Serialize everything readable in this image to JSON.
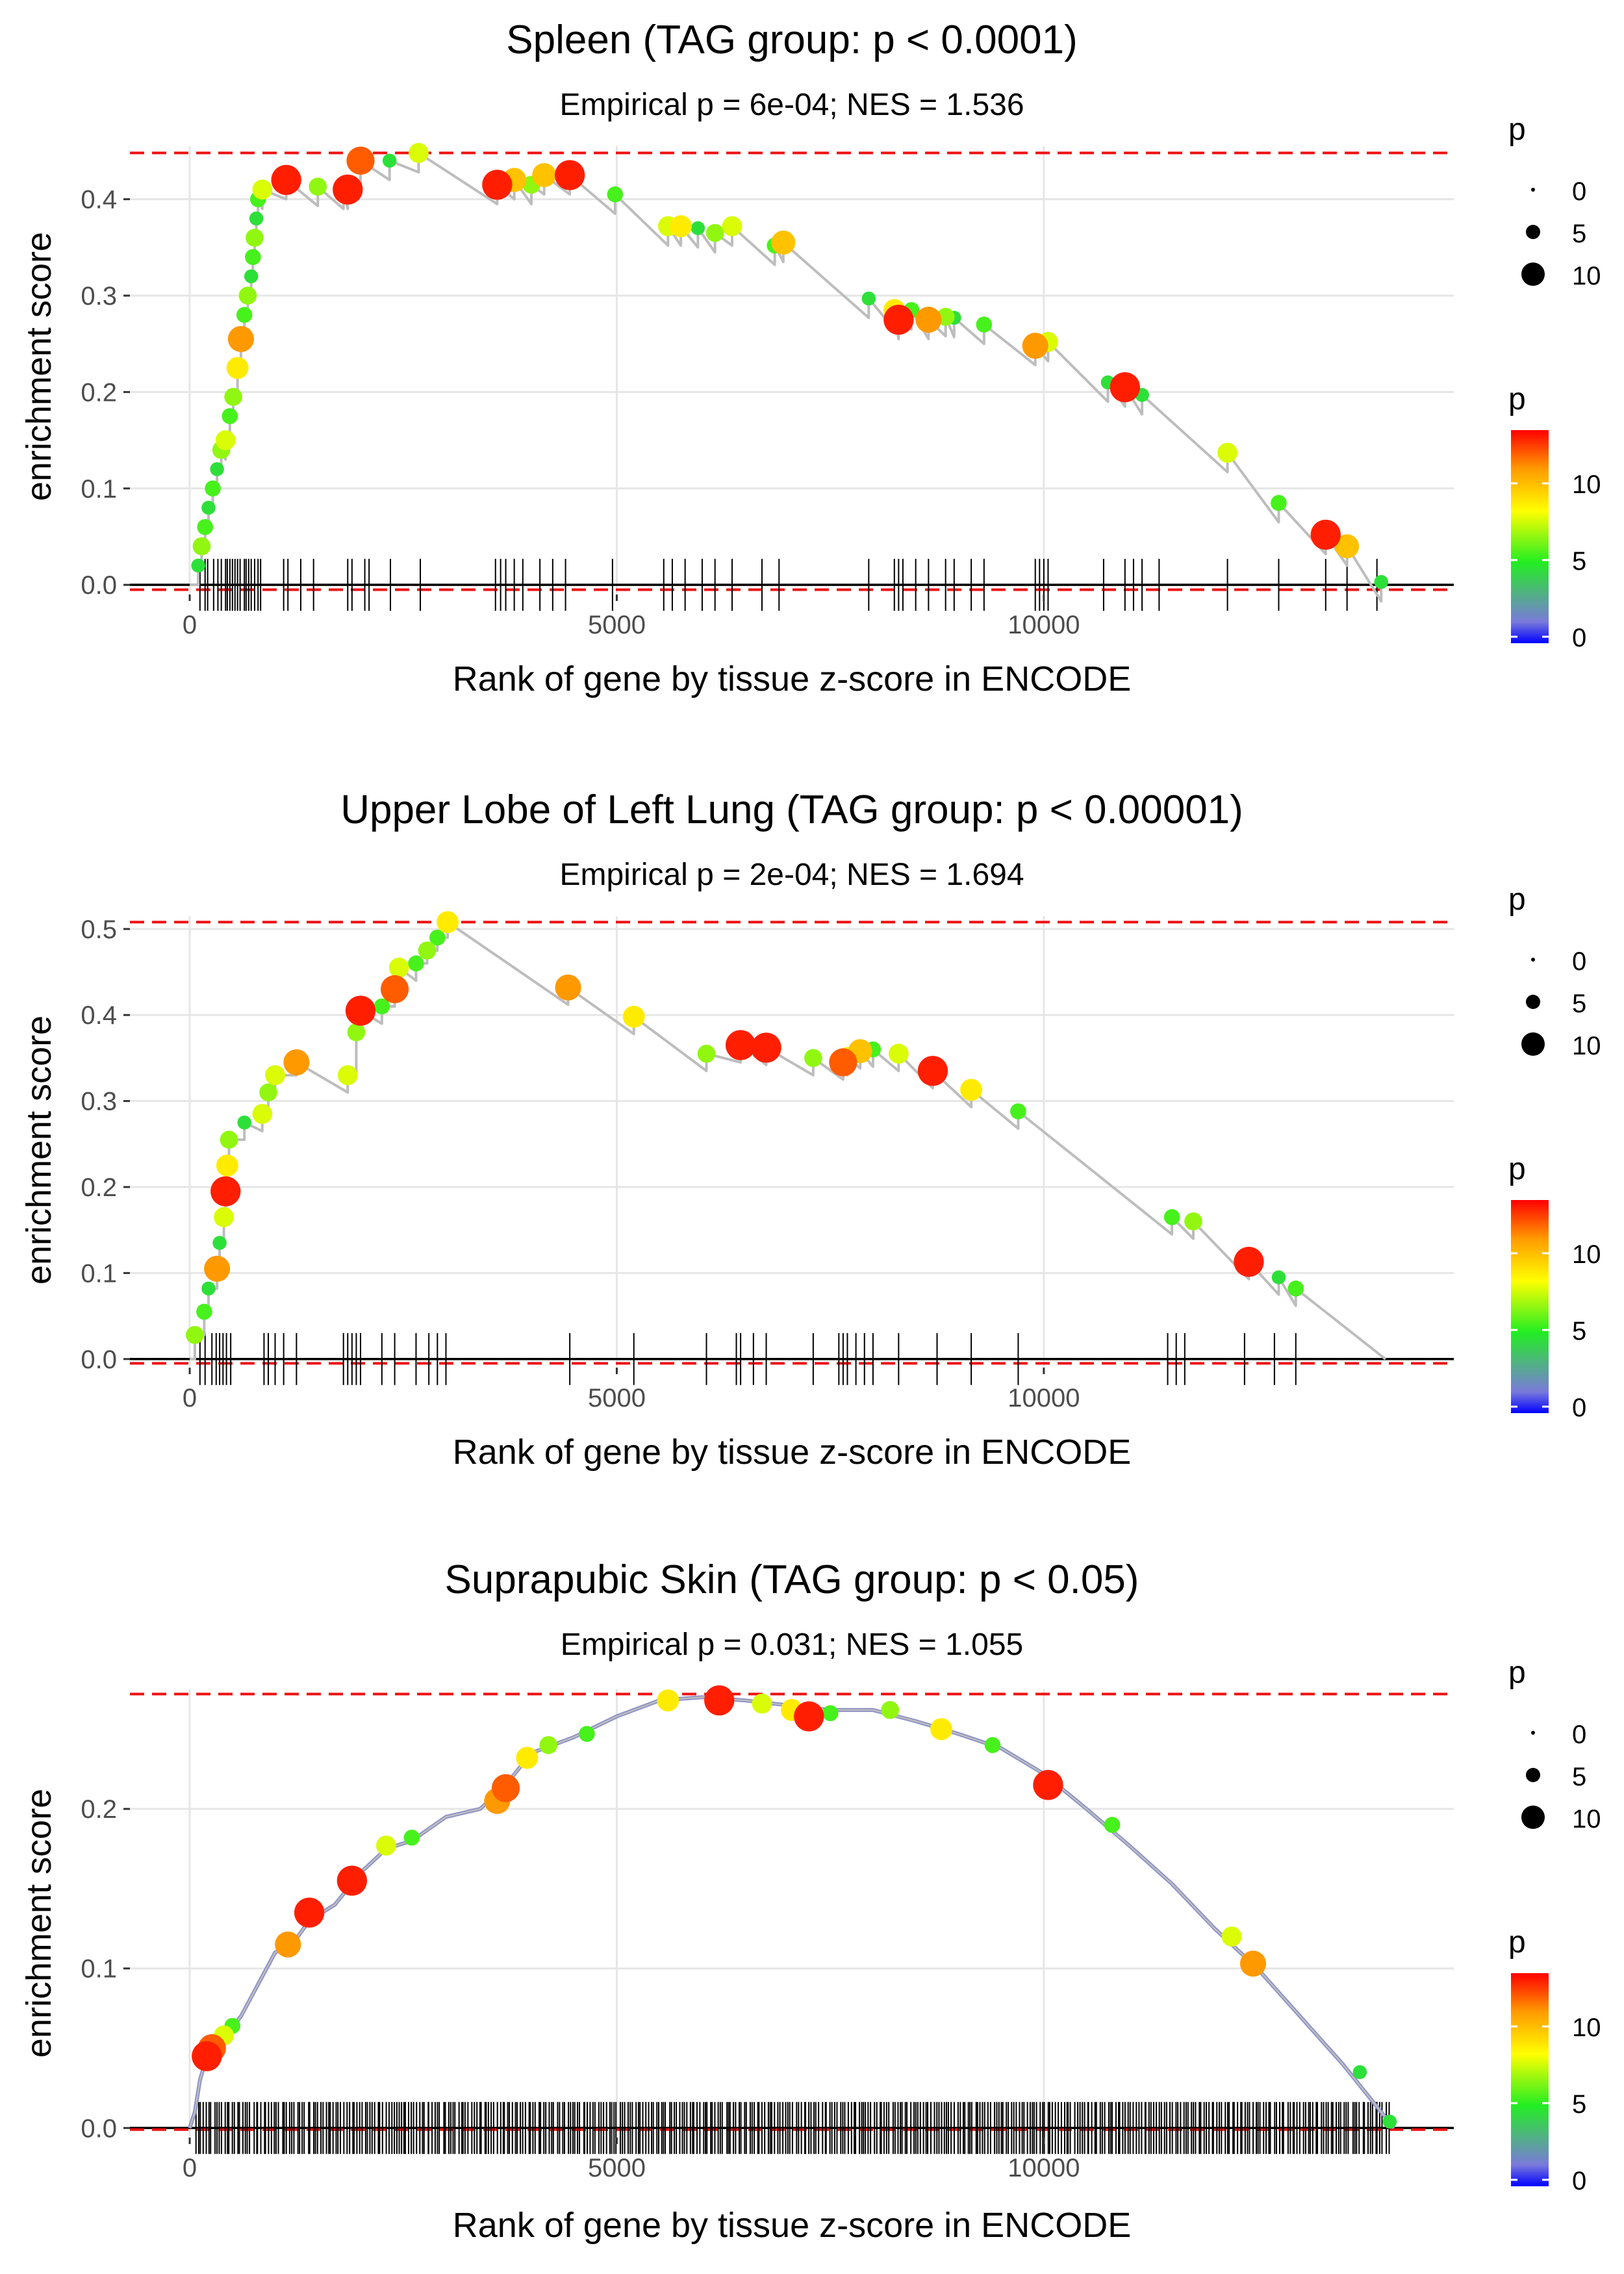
{
  "figure": {
    "xlabel": "Rank of gene by tissue z-score in ENCODE",
    "ylabel": "enrichment score",
    "xticks": [
      "0",
      "5000",
      "10000"
    ],
    "size_legend": {
      "title": "p",
      "labels": [
        "0",
        "5",
        "10"
      ]
    },
    "color_legend": {
      "title": "p",
      "labels": [
        "0",
        "5",
        "10"
      ],
      "colors": [
        "#0000ff",
        "#7a7adb",
        "#22ee22",
        "#ffff00",
        "#ff9900",
        "#ff0000"
      ]
    },
    "colors": {
      "line": "#bdbdbd",
      "threshold": "#ee1111",
      "grid": "#e6e6e6",
      "rug": "#000000"
    }
  },
  "chart_data": [
    {
      "type": "scatter",
      "title": "Spleen (TAG group: p < 0.0001)",
      "subtitle": "Empirical p = 6e-04; NES = 1.536",
      "xlabel": "Rank of gene by tissue z-score in ENCODE",
      "ylabel": "enrichment score",
      "xlim": [
        -700,
        14800
      ],
      "ylim": [
        -0.01,
        0.455
      ],
      "yticks": [
        0.0,
        0.1,
        0.2,
        0.3,
        0.4
      ],
      "ytick_labels": [
        "0.0",
        "0.1",
        "0.2",
        "0.3",
        "0.4"
      ],
      "xticks": [
        0,
        5000,
        10000
      ],
      "max_es": 0.448,
      "min_es": -0.005,
      "curve_end": 13950,
      "points": [
        {
          "x": 100,
          "y": 0.02,
          "p": 5
        },
        {
          "x": 140,
          "y": 0.04,
          "p": 7
        },
        {
          "x": 180,
          "y": 0.06,
          "p": 6
        },
        {
          "x": 220,
          "y": 0.08,
          "p": 5
        },
        {
          "x": 270,
          "y": 0.1,
          "p": 6
        },
        {
          "x": 320,
          "y": 0.12,
          "p": 5
        },
        {
          "x": 370,
          "y": 0.14,
          "p": 7
        },
        {
          "x": 420,
          "y": 0.15,
          "p": 8
        },
        {
          "x": 470,
          "y": 0.175,
          "p": 6
        },
        {
          "x": 510,
          "y": 0.195,
          "p": 7
        },
        {
          "x": 560,
          "y": 0.225,
          "p": 9
        },
        {
          "x": 600,
          "y": 0.255,
          "p": 11
        },
        {
          "x": 640,
          "y": 0.28,
          "p": 6
        },
        {
          "x": 680,
          "y": 0.3,
          "p": 7
        },
        {
          "x": 720,
          "y": 0.32,
          "p": 5
        },
        {
          "x": 740,
          "y": 0.34,
          "p": 6
        },
        {
          "x": 760,
          "y": 0.36,
          "p": 7
        },
        {
          "x": 780,
          "y": 0.38,
          "p": 5
        },
        {
          "x": 800,
          "y": 0.4,
          "p": 6
        },
        {
          "x": 850,
          "y": 0.41,
          "p": 8
        },
        {
          "x": 1130,
          "y": 0.42,
          "p": 13
        },
        {
          "x": 1500,
          "y": 0.413,
          "p": 7
        },
        {
          "x": 1800,
          "y": 0.41,
          "p": 6
        },
        {
          "x": 1850,
          "y": 0.41,
          "p": 13
        },
        {
          "x": 2000,
          "y": 0.44,
          "p": 12
        },
        {
          "x": 2340,
          "y": 0.44,
          "p": 5
        },
        {
          "x": 2680,
          "y": 0.448,
          "p": 8
        },
        {
          "x": 3600,
          "y": 0.415,
          "p": 13
        },
        {
          "x": 3800,
          "y": 0.42,
          "p": 10
        },
        {
          "x": 4000,
          "y": 0.415,
          "p": 7
        },
        {
          "x": 4150,
          "y": 0.425,
          "p": 10
        },
        {
          "x": 4450,
          "y": 0.425,
          "p": 13
        },
        {
          "x": 4980,
          "y": 0.405,
          "p": 6
        },
        {
          "x": 5600,
          "y": 0.372,
          "p": 8
        },
        {
          "x": 5750,
          "y": 0.372,
          "p": 9
        },
        {
          "x": 5950,
          "y": 0.37,
          "p": 5
        },
        {
          "x": 6150,
          "y": 0.365,
          "p": 7
        },
        {
          "x": 6350,
          "y": 0.372,
          "p": 8
        },
        {
          "x": 6850,
          "y": 0.352,
          "p": 6
        },
        {
          "x": 6950,
          "y": 0.355,
          "p": 10
        },
        {
          "x": 7950,
          "y": 0.297,
          "p": 5
        },
        {
          "x": 8250,
          "y": 0.285,
          "p": 9
        },
        {
          "x": 8300,
          "y": 0.275,
          "p": 13
        },
        {
          "x": 8450,
          "y": 0.285,
          "p": 6
        },
        {
          "x": 8650,
          "y": 0.275,
          "p": 11
        },
        {
          "x": 8850,
          "y": 0.278,
          "p": 7
        },
        {
          "x": 8950,
          "y": 0.277,
          "p": 5
        },
        {
          "x": 9300,
          "y": 0.27,
          "p": 6
        },
        {
          "x": 9900,
          "y": 0.248,
          "p": 11
        },
        {
          "x": 10050,
          "y": 0.252,
          "p": 8
        },
        {
          "x": 10750,
          "y": 0.21,
          "p": 5
        },
        {
          "x": 10950,
          "y": 0.205,
          "p": 13
        },
        {
          "x": 11150,
          "y": 0.197,
          "p": 5
        },
        {
          "x": 12150,
          "y": 0.137,
          "p": 8
        },
        {
          "x": 12750,
          "y": 0.085,
          "p": 6
        },
        {
          "x": 13300,
          "y": 0.052,
          "p": 13
        },
        {
          "x": 13550,
          "y": 0.04,
          "p": 10
        },
        {
          "x": 13950,
          "y": 0.003,
          "p": 5
        }
      ],
      "rug": [
        120,
        180,
        210,
        280,
        330,
        370,
        420,
        440,
        470,
        500,
        530,
        560,
        590,
        640,
        660,
        690,
        720,
        760,
        800,
        830,
        1100,
        1150,
        1300,
        1450,
        1850,
        1900,
        2050,
        2100,
        2350,
        2700,
        3580,
        3640,
        3700,
        3800,
        3900,
        4100,
        4250,
        4400,
        4950,
        5550,
        5650,
        5800,
        6000,
        6150,
        6350,
        6700,
        6900,
        7950,
        8250,
        8300,
        8350,
        8500,
        8650,
        8850,
        8950,
        9150,
        9300,
        9900,
        9950,
        10000,
        10050,
        10700,
        10950,
        11050,
        11150,
        11350,
        12150,
        12750,
        13300,
        13550,
        13900
      ]
    },
    {
      "type": "scatter",
      "title": "Upper Lobe of Left Lung (TAG group: p < 0.00001)",
      "subtitle": "Empirical p = 2e-04; NES = 1.694",
      "xlabel": "Rank of gene by tissue z-score in ENCODE",
      "ylabel": "enrichment score",
      "xlim": [
        -700,
        14800
      ],
      "ylim": [
        -0.01,
        0.515
      ],
      "yticks": [
        0.0,
        0.1,
        0.2,
        0.3,
        0.4,
        0.5
      ],
      "ytick_labels": [
        "0.0",
        "0.1",
        "0.2",
        "0.3",
        "0.4",
        "0.5"
      ],
      "xticks": [
        0,
        5000,
        10000
      ],
      "max_es": 0.508,
      "min_es": -0.005,
      "curve_end": 14000,
      "points": [
        {
          "x": 60,
          "y": 0.028,
          "p": 7
        },
        {
          "x": 170,
          "y": 0.055,
          "p": 6
        },
        {
          "x": 220,
          "y": 0.082,
          "p": 5
        },
        {
          "x": 320,
          "y": 0.105,
          "p": 11
        },
        {
          "x": 350,
          "y": 0.135,
          "p": 5
        },
        {
          "x": 400,
          "y": 0.165,
          "p": 8
        },
        {
          "x": 420,
          "y": 0.195,
          "p": 13
        },
        {
          "x": 440,
          "y": 0.225,
          "p": 9
        },
        {
          "x": 460,
          "y": 0.255,
          "p": 7
        },
        {
          "x": 640,
          "y": 0.275,
          "p": 5
        },
        {
          "x": 850,
          "y": 0.285,
          "p": 8
        },
        {
          "x": 920,
          "y": 0.31,
          "p": 7
        },
        {
          "x": 1000,
          "y": 0.33,
          "p": 8
        },
        {
          "x": 1250,
          "y": 0.345,
          "p": 11
        },
        {
          "x": 1850,
          "y": 0.33,
          "p": 8
        },
        {
          "x": 1950,
          "y": 0.38,
          "p": 7
        },
        {
          "x": 2000,
          "y": 0.405,
          "p": 13
        },
        {
          "x": 2250,
          "y": 0.41,
          "p": 6
        },
        {
          "x": 2400,
          "y": 0.43,
          "p": 12
        },
        {
          "x": 2450,
          "y": 0.455,
          "p": 8
        },
        {
          "x": 2650,
          "y": 0.46,
          "p": 6
        },
        {
          "x": 2780,
          "y": 0.475,
          "p": 7
        },
        {
          "x": 2900,
          "y": 0.49,
          "p": 6
        },
        {
          "x": 3020,
          "y": 0.508,
          "p": 9
        },
        {
          "x": 4430,
          "y": 0.432,
          "p": 11
        },
        {
          "x": 5200,
          "y": 0.398,
          "p": 9
        },
        {
          "x": 6050,
          "y": 0.355,
          "p": 7
        },
        {
          "x": 6450,
          "y": 0.365,
          "p": 13
        },
        {
          "x": 6750,
          "y": 0.362,
          "p": 13
        },
        {
          "x": 7300,
          "y": 0.35,
          "p": 7
        },
        {
          "x": 7650,
          "y": 0.345,
          "p": 12
        },
        {
          "x": 7700,
          "y": 0.35,
          "p": 9
        },
        {
          "x": 7850,
          "y": 0.358,
          "p": 10
        },
        {
          "x": 8000,
          "y": 0.36,
          "p": 6
        },
        {
          "x": 8300,
          "y": 0.355,
          "p": 8
        },
        {
          "x": 8700,
          "y": 0.335,
          "p": 13
        },
        {
          "x": 9150,
          "y": 0.313,
          "p": 9
        },
        {
          "x": 9700,
          "y": 0.288,
          "p": 6
        },
        {
          "x": 11500,
          "y": 0.165,
          "p": 6
        },
        {
          "x": 11750,
          "y": 0.16,
          "p": 7
        },
        {
          "x": 12400,
          "y": 0.113,
          "p": 13
        },
        {
          "x": 12750,
          "y": 0.095,
          "p": 5
        },
        {
          "x": 12950,
          "y": 0.082,
          "p": 6
        }
      ],
      "rug": [
        120,
        180,
        260,
        310,
        350,
        390,
        430,
        480,
        870,
        920,
        1000,
        1100,
        1250,
        1800,
        1850,
        1900,
        1950,
        2000,
        2250,
        2400,
        2650,
        2800,
        2900,
        3000,
        4450,
        5200,
        6050,
        6400,
        6450,
        6600,
        6750,
        7300,
        7600,
        7650,
        7700,
        7800,
        7900,
        8000,
        8300,
        8750,
        9150,
        9700,
        11450,
        11550,
        11650,
        12350,
        12700,
        12950
      ]
    },
    {
      "type": "scatter",
      "title": "Suprapubic Skin (TAG group: p < 0.05)",
      "subtitle": "Empirical p = 0.031; NES = 1.055",
      "xlabel": "Rank of gene by tissue z-score in ENCODE",
      "ylabel": "enrichment score",
      "xlim": [
        -700,
        14800
      ],
      "ylim": [
        -0.006,
        0.275
      ],
      "yticks": [
        0.0,
        0.1,
        0.2
      ],
      "ytick_labels": [
        "0.0",
        "0.1",
        "0.2"
      ],
      "xticks": [
        0,
        5000,
        10000
      ],
      "max_es": 0.272,
      "min_es": -0.001,
      "curve_end": 14100,
      "curve": [
        {
          "x": 0,
          "y": 0.0
        },
        {
          "x": 60,
          "y": 0.01
        },
        {
          "x": 120,
          "y": 0.03
        },
        {
          "x": 200,
          "y": 0.045
        },
        {
          "x": 300,
          "y": 0.055
        },
        {
          "x": 450,
          "y": 0.06
        },
        {
          "x": 600,
          "y": 0.07
        },
        {
          "x": 800,
          "y": 0.09
        },
        {
          "x": 1000,
          "y": 0.11
        },
        {
          "x": 1200,
          "y": 0.115
        },
        {
          "x": 1400,
          "y": 0.13
        },
        {
          "x": 1700,
          "y": 0.14
        },
        {
          "x": 2000,
          "y": 0.16
        },
        {
          "x": 2300,
          "y": 0.175
        },
        {
          "x": 2600,
          "y": 0.18
        },
        {
          "x": 3000,
          "y": 0.195
        },
        {
          "x": 3400,
          "y": 0.2
        },
        {
          "x": 3700,
          "y": 0.215
        },
        {
          "x": 4000,
          "y": 0.235
        },
        {
          "x": 4500,
          "y": 0.245
        },
        {
          "x": 5000,
          "y": 0.258
        },
        {
          "x": 5500,
          "y": 0.268
        },
        {
          "x": 6000,
          "y": 0.27
        },
        {
          "x": 6500,
          "y": 0.268
        },
        {
          "x": 7000,
          "y": 0.265
        },
        {
          "x": 7500,
          "y": 0.262
        },
        {
          "x": 8000,
          "y": 0.262
        },
        {
          "x": 8500,
          "y": 0.255
        },
        {
          "x": 9000,
          "y": 0.247
        },
        {
          "x": 9500,
          "y": 0.238
        },
        {
          "x": 10000,
          "y": 0.222
        },
        {
          "x": 10500,
          "y": 0.2
        },
        {
          "x": 11000,
          "y": 0.177
        },
        {
          "x": 11500,
          "y": 0.153
        },
        {
          "x": 12000,
          "y": 0.125
        },
        {
          "x": 12500,
          "y": 0.1
        },
        {
          "x": 13000,
          "y": 0.07
        },
        {
          "x": 13500,
          "y": 0.04
        },
        {
          "x": 13800,
          "y": 0.02
        },
        {
          "x": 14100,
          "y": 0.0
        }
      ],
      "points": [
        {
          "x": 200,
          "y": 0.045,
          "p": 13
        },
        {
          "x": 260,
          "y": 0.05,
          "p": 12
        },
        {
          "x": 400,
          "y": 0.058,
          "p": 8
        },
        {
          "x": 500,
          "y": 0.064,
          "p": 6
        },
        {
          "x": 1150,
          "y": 0.115,
          "p": 11
        },
        {
          "x": 1400,
          "y": 0.135,
          "p": 13
        },
        {
          "x": 1900,
          "y": 0.155,
          "p": 13
        },
        {
          "x": 2300,
          "y": 0.177,
          "p": 8
        },
        {
          "x": 2600,
          "y": 0.182,
          "p": 6
        },
        {
          "x": 3600,
          "y": 0.205,
          "p": 11
        },
        {
          "x": 3700,
          "y": 0.213,
          "p": 12
        },
        {
          "x": 3950,
          "y": 0.232,
          "p": 9
        },
        {
          "x": 4200,
          "y": 0.24,
          "p": 7
        },
        {
          "x": 4650,
          "y": 0.247,
          "p": 6
        },
        {
          "x": 5600,
          "y": 0.268,
          "p": 9
        },
        {
          "x": 6200,
          "y": 0.268,
          "p": 13
        },
        {
          "x": 6700,
          "y": 0.266,
          "p": 8
        },
        {
          "x": 7050,
          "y": 0.262,
          "p": 9
        },
        {
          "x": 7250,
          "y": 0.258,
          "p": 13
        },
        {
          "x": 7500,
          "y": 0.26,
          "p": 6
        },
        {
          "x": 8200,
          "y": 0.262,
          "p": 7
        },
        {
          "x": 8800,
          "y": 0.25,
          "p": 9
        },
        {
          "x": 9400,
          "y": 0.24,
          "p": 6
        },
        {
          "x": 10050,
          "y": 0.215,
          "p": 13
        },
        {
          "x": 10800,
          "y": 0.19,
          "p": 6
        },
        {
          "x": 12200,
          "y": 0.12,
          "p": 8
        },
        {
          "x": 12450,
          "y": 0.103,
          "p": 11
        },
        {
          "x": 13700,
          "y": 0.035,
          "p": 5
        },
        {
          "x": 14050,
          "y": 0.004,
          "p": 5
        }
      ],
      "rug": {
        "from": 60,
        "to": 14050,
        "count": 460
      }
    }
  ]
}
